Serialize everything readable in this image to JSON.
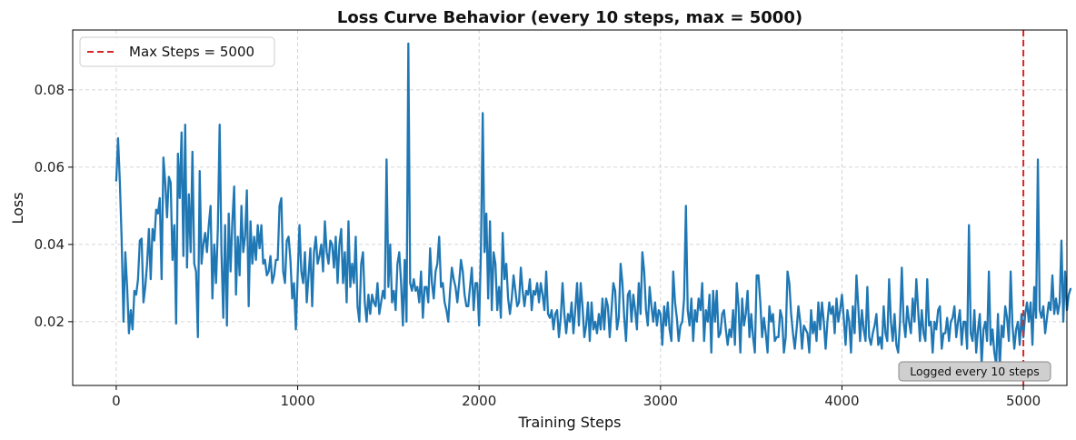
{
  "chart_data": {
    "type": "line",
    "title": "Loss Curve Behavior (every 10 steps, max = 5000)",
    "xlabel": "Training Steps",
    "ylabel": "Loss",
    "xlim": [
      -240,
      5240
    ],
    "ylim": [
      0.0035,
      0.0955
    ],
    "xticks": [
      0,
      1000,
      2000,
      3000,
      4000,
      5000
    ],
    "xtick_labels": [
      "0",
      "1000",
      "2000",
      "3000",
      "4000",
      "5000"
    ],
    "yticks": [
      0.02,
      0.04,
      0.06,
      0.08
    ],
    "ytick_labels": [
      "0.02",
      "0.04",
      "0.06",
      "0.08"
    ],
    "grid": true,
    "legend_position": "top-left",
    "max_steps": 5000,
    "series": [
      {
        "name": "",
        "color": "#1f77b4",
        "x_start": 0,
        "x_step": 10,
        "values": [
          0.0565,
          0.0675,
          0.056,
          0.041,
          0.02,
          0.038,
          0.029,
          0.017,
          0.023,
          0.018,
          0.028,
          0.027,
          0.031,
          0.041,
          0.0415,
          0.025,
          0.029,
          0.035,
          0.044,
          0.031,
          0.044,
          0.041,
          0.049,
          0.048,
          0.052,
          0.031,
          0.0625,
          0.056,
          0.047,
          0.0575,
          0.056,
          0.036,
          0.045,
          0.0195,
          0.0635,
          0.052,
          0.069,
          0.037,
          0.071,
          0.034,
          0.053,
          0.038,
          0.064,
          0.035,
          0.033,
          0.016,
          0.059,
          0.035,
          0.04,
          0.043,
          0.038,
          0.045,
          0.05,
          0.026,
          0.04,
          0.03,
          0.044,
          0.071,
          0.038,
          0.021,
          0.045,
          0.019,
          0.048,
          0.033,
          0.046,
          0.055,
          0.027,
          0.042,
          0.032,
          0.05,
          0.038,
          0.042,
          0.054,
          0.024,
          0.046,
          0.035,
          0.042,
          0.036,
          0.045,
          0.039,
          0.045,
          0.035,
          0.036,
          0.032,
          0.033,
          0.037,
          0.03,
          0.032,
          0.036,
          0.036,
          0.05,
          0.052,
          0.033,
          0.03,
          0.041,
          0.042,
          0.036,
          0.026,
          0.03,
          0.018,
          0.032,
          0.045,
          0.033,
          0.03,
          0.038,
          0.025,
          0.032,
          0.039,
          0.024,
          0.038,
          0.042,
          0.035,
          0.037,
          0.04,
          0.033,
          0.046,
          0.038,
          0.035,
          0.041,
          0.04,
          0.034,
          0.042,
          0.03,
          0.04,
          0.044,
          0.03,
          0.038,
          0.025,
          0.046,
          0.029,
          0.035,
          0.03,
          0.042,
          0.024,
          0.02,
          0.035,
          0.038,
          0.025,
          0.02,
          0.027,
          0.022,
          0.027,
          0.025,
          0.024,
          0.03,
          0.022,
          0.025,
          0.028,
          0.026,
          0.062,
          0.029,
          0.04,
          0.025,
          0.028,
          0.023,
          0.035,
          0.038,
          0.03,
          0.019,
          0.036,
          0.02,
          0.092,
          0.03,
          0.028,
          0.031,
          0.028,
          0.029,
          0.025,
          0.033,
          0.021,
          0.029,
          0.029,
          0.025,
          0.039,
          0.03,
          0.026,
          0.033,
          0.035,
          0.042,
          0.029,
          0.03,
          0.025,
          0.023,
          0.02,
          0.028,
          0.034,
          0.031,
          0.029,
          0.025,
          0.03,
          0.036,
          0.033,
          0.027,
          0.024,
          0.024,
          0.029,
          0.034,
          0.023,
          0.03,
          0.03,
          0.019,
          0.038,
          0.074,
          0.038,
          0.048,
          0.026,
          0.046,
          0.023,
          0.038,
          0.035,
          0.023,
          0.029,
          0.021,
          0.043,
          0.031,
          0.035,
          0.026,
          0.022,
          0.026,
          0.032,
          0.028,
          0.024,
          0.025,
          0.034,
          0.028,
          0.024,
          0.028,
          0.027,
          0.031,
          0.023,
          0.028,
          0.027,
          0.03,
          0.025,
          0.03,
          0.027,
          0.023,
          0.033,
          0.022,
          0.021,
          0.023,
          0.018,
          0.022,
          0.023,
          0.016,
          0.021,
          0.03,
          0.022,
          0.017,
          0.022,
          0.02,
          0.025,
          0.017,
          0.023,
          0.03,
          0.019,
          0.03,
          0.024,
          0.016,
          0.019,
          0.025,
          0.015,
          0.025,
          0.018,
          0.02,
          0.017,
          0.022,
          0.018,
          0.026,
          0.018,
          0.026,
          0.024,
          0.016,
          0.023,
          0.03,
          0.028,
          0.018,
          0.021,
          0.035,
          0.03,
          0.021,
          0.015,
          0.027,
          0.028,
          0.02,
          0.027,
          0.023,
          0.018,
          0.03,
          0.022,
          0.038,
          0.033,
          0.023,
          0.019,
          0.029,
          0.024,
          0.02,
          0.025,
          0.019,
          0.023,
          0.022,
          0.014,
          0.024,
          0.019,
          0.025,
          0.018,
          0.015,
          0.033,
          0.025,
          0.021,
          0.015,
          0.019,
          0.02,
          0.026,
          0.05,
          0.023,
          0.019,
          0.026,
          0.015,
          0.023,
          0.02,
          0.026,
          0.023,
          0.03,
          0.015,
          0.023,
          0.02,
          0.027,
          0.012,
          0.028,
          0.02,
          0.028,
          0.016,
          0.017,
          0.022,
          0.023,
          0.018,
          0.014,
          0.018,
          0.016,
          0.023,
          0.014,
          0.03,
          0.024,
          0.012,
          0.026,
          0.019,
          0.022,
          0.028,
          0.016,
          0.022,
          0.016,
          0.012,
          0.032,
          0.032,
          0.025,
          0.016,
          0.021,
          0.017,
          0.012,
          0.024,
          0.02,
          0.022,
          0.015,
          0.016,
          0.016,
          0.023,
          0.021,
          0.012,
          0.016,
          0.033,
          0.03,
          0.022,
          0.017,
          0.013,
          0.018,
          0.024,
          0.02,
          0.013,
          0.019,
          0.018,
          0.017,
          0.012,
          0.023,
          0.017,
          0.02,
          0.015,
          0.025,
          0.018,
          0.025,
          0.02,
          0.013,
          0.02,
          0.025,
          0.022,
          0.024,
          0.017,
          0.026,
          0.02,
          0.023,
          0.027,
          0.021,
          0.014,
          0.023,
          0.02,
          0.012,
          0.024,
          0.017,
          0.032,
          0.024,
          0.015,
          0.023,
          0.018,
          0.015,
          0.029,
          0.016,
          0.014,
          0.017,
          0.019,
          0.022,
          0.014,
          0.016,
          0.013,
          0.024,
          0.017,
          0.015,
          0.031,
          0.02,
          0.015,
          0.022,
          0.014,
          0.012,
          0.02,
          0.034,
          0.02,
          0.016,
          0.024,
          0.02,
          0.017,
          0.026,
          0.02,
          0.031,
          0.023,
          0.015,
          0.023,
          0.017,
          0.015,
          0.031,
          0.019,
          0.02,
          0.012,
          0.02,
          0.018,
          0.023,
          0.024,
          0.013,
          0.017,
          0.017,
          0.021,
          0.015,
          0.02,
          0.021,
          0.024,
          0.016,
          0.02,
          0.023,
          0.014,
          0.02,
          0.02,
          0.013,
          0.045,
          0.017,
          0.015,
          0.023,
          0.012,
          0.018,
          0.022,
          0.009,
          0.018,
          0.02,
          0.015,
          0.033,
          0.014,
          0.018,
          0.012,
          0.009,
          0.022,
          0.008,
          0.019,
          0.016,
          0.024,
          0.021,
          0.015,
          0.033,
          0.019,
          0.013,
          0.018,
          0.02,
          0.014,
          0.022,
          0.016,
          0.022,
          0.025,
          0.02,
          0.025,
          0.014,
          0.029,
          0.021,
          0.062,
          0.023,
          0.021,
          0.024,
          0.017,
          0.021,
          0.025,
          0.023,
          0.032,
          0.022,
          0.026,
          0.022,
          0.025,
          0.041,
          0.02,
          0.033,
          0.023,
          0.027,
          0.0285
        ]
      }
    ],
    "reference_lines": [
      {
        "orientation": "vertical",
        "x": 5000,
        "label": "Max Steps = 5000",
        "color": "#d62728",
        "style": "dashed"
      }
    ],
    "legend": [
      {
        "label": "Max Steps = 5000",
        "color": "#d62728",
        "style": "dashed"
      }
    ],
    "annotation": {
      "text": "Logged every 10 steps",
      "position": "bottom-right"
    }
  }
}
